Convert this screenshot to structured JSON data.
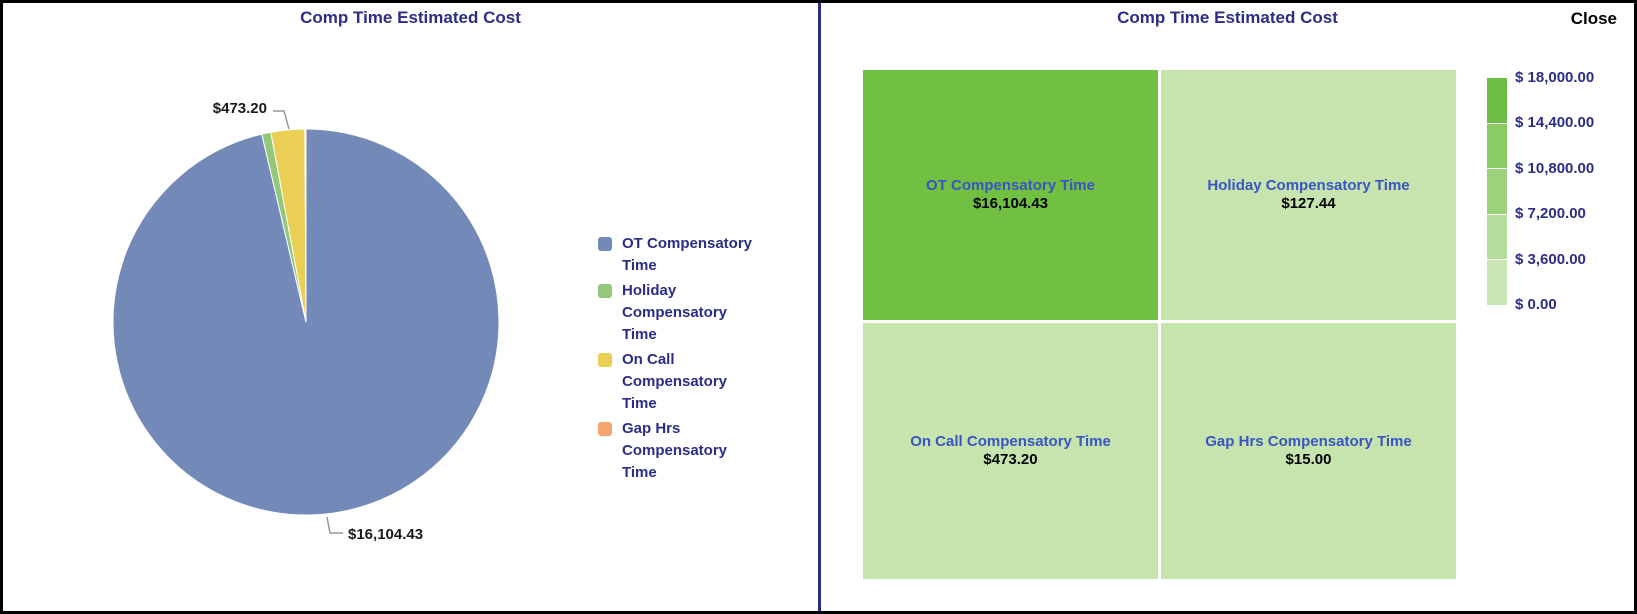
{
  "window": {
    "close_label": "Close"
  },
  "colors": {
    "title_text": "#2B2D87",
    "cell_label_text": "#3A53C5",
    "divider": "#2B2D87",
    "callout_line": "#999999"
  },
  "chart_data": [
    {
      "type": "pie",
      "title": "Comp Time Estimated Cost",
      "categories": [
        "OT Compensatory Time",
        "Holiday Compensatory Time",
        "On Call Compensatory Time",
        "Gap Hrs Compensatory Time"
      ],
      "values": [
        16104.43,
        127.44,
        473.2,
        15.0
      ],
      "colors": [
        "#7389B8",
        "#93C77A",
        "#EACF54",
        "#F5A66E"
      ],
      "legend_position": "right",
      "data_labels": [
        {
          "text": "$473.20",
          "series": "On Call Compensatory Time"
        },
        {
          "text": "$16,104.43",
          "series": "OT Compensatory Time"
        }
      ]
    },
    {
      "type": "heatmap",
      "title": "Comp Time Estimated Cost",
      "cells": [
        {
          "label": "OT Compensatory Time",
          "value": 16104.43,
          "value_label": "$16,104.43",
          "color": "#72C041"
        },
        {
          "label": "Holiday Compensatory Time",
          "value": 127.44,
          "value_label": "$127.44",
          "color": "#C7E4AE"
        },
        {
          "label": "On Call Compensatory Time",
          "value": 473.2,
          "value_label": "$473.20",
          "color": "#C7E4AE"
        },
        {
          "label": "Gap Hrs Compensatory Time",
          "value": 15.0,
          "value_label": "$15.00",
          "color": "#C7E4AE"
        }
      ],
      "scale": {
        "min": 0,
        "max": 18000,
        "tick_labels": [
          "$ 18,000.00",
          "$ 14,400.00",
          "$ 10,800.00",
          "$ 7,200.00",
          "$ 3,600.00",
          "$ 0.00"
        ],
        "segment_colors": [
          "#6CBE44",
          "#8BCB66",
          "#9DD27D",
          "#B5DC9B",
          "#C9E5B3"
        ]
      }
    }
  ]
}
